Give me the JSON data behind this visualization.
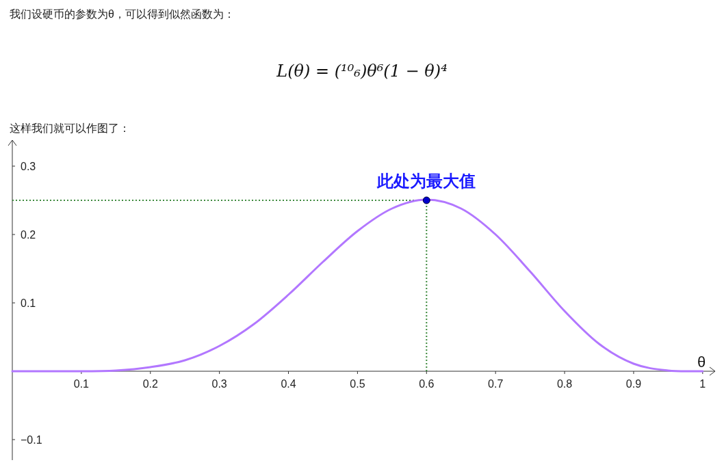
{
  "chart_data": {
    "type": "line",
    "title": "我们设硬币的参数为θ，可以得到似然函数为：",
    "subtitle": "L(θ) = (¹⁰₆)θ⁶(1 − θ)⁴",
    "xlabel": "θ",
    "x": [
      0,
      0.05,
      0.1,
      0.15,
      0.2,
      0.25,
      0.3,
      0.35,
      0.4,
      0.45,
      0.5,
      0.55,
      0.6,
      0.65,
      0.7,
      0.75,
      0.8,
      0.85,
      0.9,
      0.95,
      1
    ],
    "series": [
      {
        "color": "#b277ff",
        "values": [
          0,
          0,
          0.0,
          0.001,
          0.006,
          0.016,
          0.037,
          0.069,
          0.112,
          0.16,
          0.205,
          0.238,
          0.251,
          0.238,
          0.2,
          0.146,
          0.088,
          0.04,
          0.011,
          0.001,
          0
        ]
      },
      {
        "type": "scatter",
        "color": "#0000cc",
        "x": [
          0.6
        ],
        "values": [
          0.25
        ],
        "marker": "circle"
      }
    ],
    "annotations": [
      {
        "text": "此处为最大值",
        "x": 0.6,
        "y": 0.25
      },
      "这样我们就可以作图了："
    ],
    "ref_lines": [
      {
        "axis": "y",
        "value": 0.25,
        "color": "#3d8a3d",
        "line_style": "dotted"
      },
      {
        "axis": "x",
        "value": 0.6,
        "color": "#3d8a3d",
        "line_style": "dotted"
      }
    ],
    "xlim": [
      0,
      1.02
    ],
    "ylim": [
      -0.13,
      0.34
    ],
    "xticks": [
      0.1,
      0.2,
      0.3,
      0.4,
      0.5,
      0.6,
      0.7,
      0.8,
      0.9,
      1
    ],
    "yticks": [
      {
        "value": -0.1,
        "label": "−0.1"
      },
      0.1,
      0.2,
      0.3
    ],
    "grid": false
  }
}
